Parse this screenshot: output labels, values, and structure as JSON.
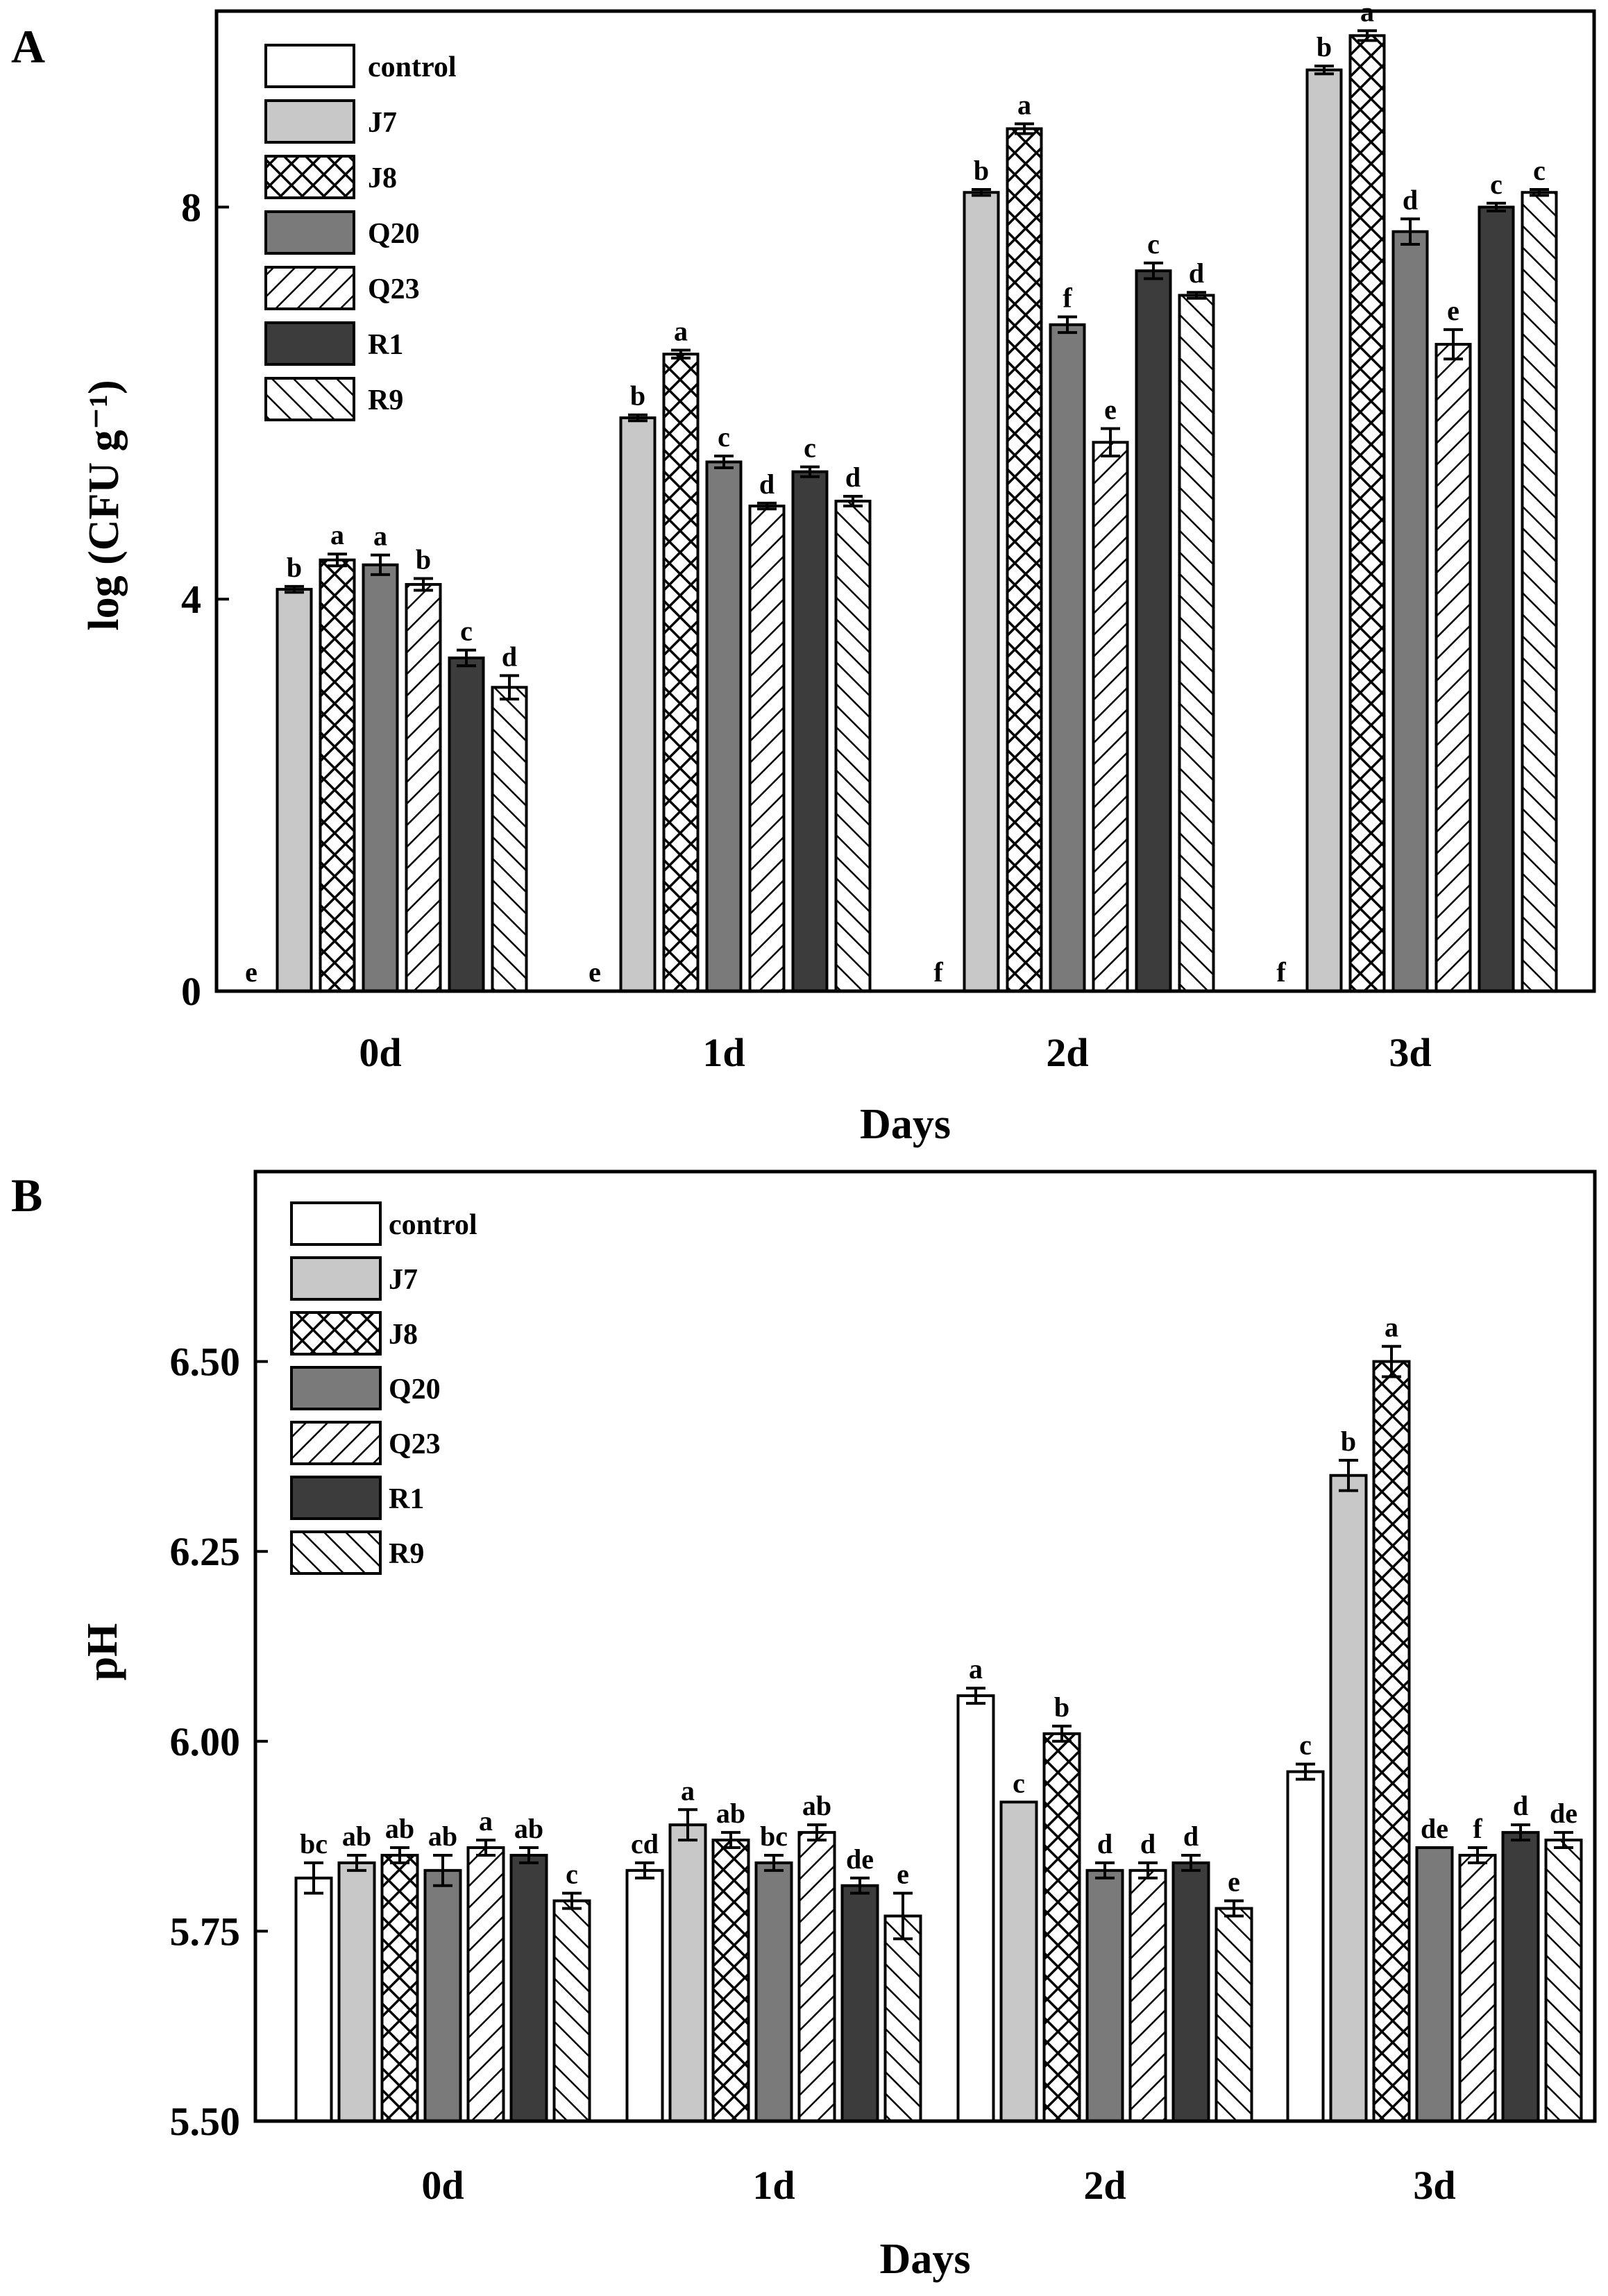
{
  "chart_data": [
    {
      "type": "bar",
      "panel": "A",
      "categories": [
        "0d",
        "1d",
        "2d",
        "3d"
      ],
      "xlabel": "Days",
      "ylabel": "log (CFU g⁻¹)",
      "yticks": [
        "0",
        "4",
        "8"
      ],
      "ylim": [
        0,
        10
      ],
      "grid": false,
      "legend_position": "top-left",
      "series": [
        {
          "name": "control",
          "values": [
            0,
            0,
            0,
            0
          ],
          "errors": [
            0,
            0,
            0,
            0
          ],
          "letters": [
            "e",
            "e",
            "f",
            "f"
          ]
        },
        {
          "name": "J7",
          "values": [
            4.1,
            5.85,
            8.15,
            9.4
          ],
          "errors": [
            0.03,
            0.03,
            0.03,
            0.04
          ],
          "letters": [
            "b",
            "b",
            "b",
            "b"
          ]
        },
        {
          "name": "J8",
          "values": [
            4.4,
            6.5,
            8.8,
            9.75
          ],
          "errors": [
            0.06,
            0.04,
            0.05,
            0.05
          ],
          "letters": [
            "a",
            "a",
            "a",
            "a"
          ]
        },
        {
          "name": "Q20",
          "values": [
            4.35,
            5.4,
            6.8,
            7.75
          ],
          "errors": [
            0.1,
            0.06,
            0.08,
            0.13
          ],
          "letters": [
            "a",
            "c",
            "f",
            "d"
          ]
        },
        {
          "name": "Q23",
          "values": [
            4.15,
            4.95,
            5.6,
            6.6
          ],
          "errors": [
            0.06,
            0.03,
            0.14,
            0.15
          ],
          "letters": [
            "b",
            "d",
            "e",
            "e"
          ]
        },
        {
          "name": "R1",
          "values": [
            3.4,
            5.3,
            7.35,
            8.0
          ],
          "errors": [
            0.08,
            0.05,
            0.08,
            0.04
          ],
          "letters": [
            "c",
            "c",
            "c",
            "c"
          ]
        },
        {
          "name": "R9",
          "values": [
            3.1,
            5.0,
            7.1,
            8.15
          ],
          "errors": [
            0.12,
            0.05,
            0.03,
            0.03
          ],
          "letters": [
            "d",
            "d",
            "d",
            "c"
          ]
        }
      ]
    },
    {
      "type": "bar",
      "panel": "B",
      "categories": [
        "0d",
        "1d",
        "2d",
        "3d"
      ],
      "xlabel": "Days",
      "ylabel": "pH",
      "yticks": [
        "5.50",
        "5.75",
        "6.00",
        "6.25",
        "6.50"
      ],
      "ylim": [
        5.5,
        6.75
      ],
      "grid": false,
      "legend_position": "top-left",
      "series": [
        {
          "name": "control",
          "values": [
            5.82,
            5.83,
            6.06,
            5.96
          ],
          "errors": [
            0.02,
            0.01,
            0.01,
            0.01
          ],
          "letters": [
            "bc",
            "cd",
            "a",
            "c"
          ]
        },
        {
          "name": "J7",
          "values": [
            5.84,
            5.89,
            5.92,
            6.35
          ],
          "errors": [
            0.01,
            0.02,
            0.0,
            0.02
          ],
          "letters": [
            "ab",
            "a",
            "c",
            "b"
          ]
        },
        {
          "name": "J8",
          "values": [
            5.85,
            5.87,
            6.01,
            6.5
          ],
          "errors": [
            0.01,
            0.01,
            0.01,
            0.02
          ],
          "letters": [
            "ab",
            "ab",
            "b",
            "a"
          ]
        },
        {
          "name": "Q20",
          "values": [
            5.83,
            5.84,
            5.83,
            5.86
          ],
          "errors": [
            0.02,
            0.01,
            0.01,
            0.0
          ],
          "letters": [
            "ab",
            "bc",
            "d",
            "de"
          ]
        },
        {
          "name": "Q23",
          "values": [
            5.86,
            5.88,
            5.83,
            5.85
          ],
          "errors": [
            0.01,
            0.01,
            0.01,
            0.01
          ],
          "letters": [
            "a",
            "ab",
            "d",
            "f"
          ]
        },
        {
          "name": "R1",
          "values": [
            5.85,
            5.81,
            5.84,
            5.88
          ],
          "errors": [
            0.01,
            0.01,
            0.01,
            0.01
          ],
          "letters": [
            "ab",
            "de",
            "d",
            "d"
          ]
        },
        {
          "name": "R9",
          "values": [
            5.79,
            5.77,
            5.78,
            5.87
          ],
          "errors": [
            0.01,
            0.03,
            0.01,
            0.01
          ],
          "letters": [
            "c",
            "e",
            "e",
            "de"
          ]
        }
      ]
    }
  ],
  "styles": {
    "control": {
      "fill": "#ffffff",
      "pattern": "none"
    },
    "J7": {
      "fill": "#c8c8c8",
      "pattern": "none"
    },
    "J8": {
      "fill": "#ffffff",
      "pattern": "crosshatch"
    },
    "Q20": {
      "fill": "#7a7a7a",
      "pattern": "none"
    },
    "Q23": {
      "fill": "#ffffff",
      "pattern": "forward-diagonal"
    },
    "R1": {
      "fill": "#3c3c3c",
      "pattern": "none"
    },
    "R9": {
      "fill": "#ffffff",
      "pattern": "back-diagonal"
    }
  }
}
